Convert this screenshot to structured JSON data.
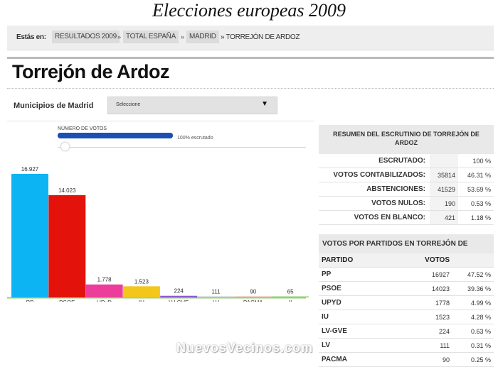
{
  "masthead": {
    "title": "Elecciones europeas 2009"
  },
  "breadcrumb": {
    "lead": "Estás en:",
    "items": [
      "RESULTADOS 2009",
      "TOTAL ESPAÑA",
      "MADRID"
    ],
    "current": "» TORREJÓN DE ARDOZ",
    "separator": "»"
  },
  "page": {
    "title": "Torrejón de Ardoz"
  },
  "municipios": {
    "label": "Municipios de Madrid",
    "selected": "Seleccione"
  },
  "progress": {
    "label": "NÚMERO DE VOTOS",
    "fraction": 1.0,
    "text": "100% escrutado"
  },
  "summary": {
    "title": "RESUMEN DEL ESCRUTINIO DE TORREJÓN DE ARDOZ",
    "rows": [
      {
        "label": "ESCRUTADO:",
        "value": "",
        "pct": "100 %"
      },
      {
        "label": "VOTOS CONTABILIZADOS:",
        "value": "35814",
        "pct": "46.31 %"
      },
      {
        "label": "ABSTENCIONES:",
        "value": "41529",
        "pct": "53.69 %"
      },
      {
        "label": "VOTOS NULOS:",
        "value": "190",
        "pct": "0.53 %"
      },
      {
        "label": "VOTOS EN BLANCO:",
        "value": "421",
        "pct": "1.18 %"
      }
    ]
  },
  "votes": {
    "title": "VOTOS POR PARTIDOS EN TORREJÓN DE ARDOZ",
    "col_party": "PARTIDO",
    "col_votes": "VOTOS",
    "rows": [
      {
        "party": "PP",
        "votes": "16927",
        "pct": "47.52 %"
      },
      {
        "party": "PSOE",
        "votes": "14023",
        "pct": "39.36 %"
      },
      {
        "party": "UPYD",
        "votes": "1778",
        "pct": "4.99 %"
      },
      {
        "party": "IU",
        "votes": "1523",
        "pct": "4.28 %"
      },
      {
        "party": "LV-GVE",
        "votes": "224",
        "pct": "0.63 %"
      },
      {
        "party": "LV",
        "votes": "111",
        "pct": "0.31 %"
      },
      {
        "party": "PACMA",
        "votes": "90",
        "pct": "0.25 %"
      }
    ]
  },
  "chart_data": {
    "type": "bar",
    "categories": [
      "PP",
      "PSOE",
      "UPyD",
      "IU",
      "LV-GVE",
      "LV",
      "PACMA",
      "II"
    ],
    "values": [
      16927,
      14023,
      1778,
      1523,
      224,
      111,
      90,
      65
    ],
    "value_labels": [
      "16.927",
      "14.023",
      "1.778",
      "1.523",
      "224",
      "111",
      "90",
      "65"
    ],
    "colors": [
      "#0db4f4",
      "#e3120b",
      "#ec3d9c",
      "#f3c61a",
      "#8b5bd1",
      "#c8c8c8",
      "#e6b0a0",
      "#8fd16f"
    ],
    "ylim": [
      0,
      16927
    ],
    "grid": false
  },
  "watermark": "NuevosVecinos.com"
}
